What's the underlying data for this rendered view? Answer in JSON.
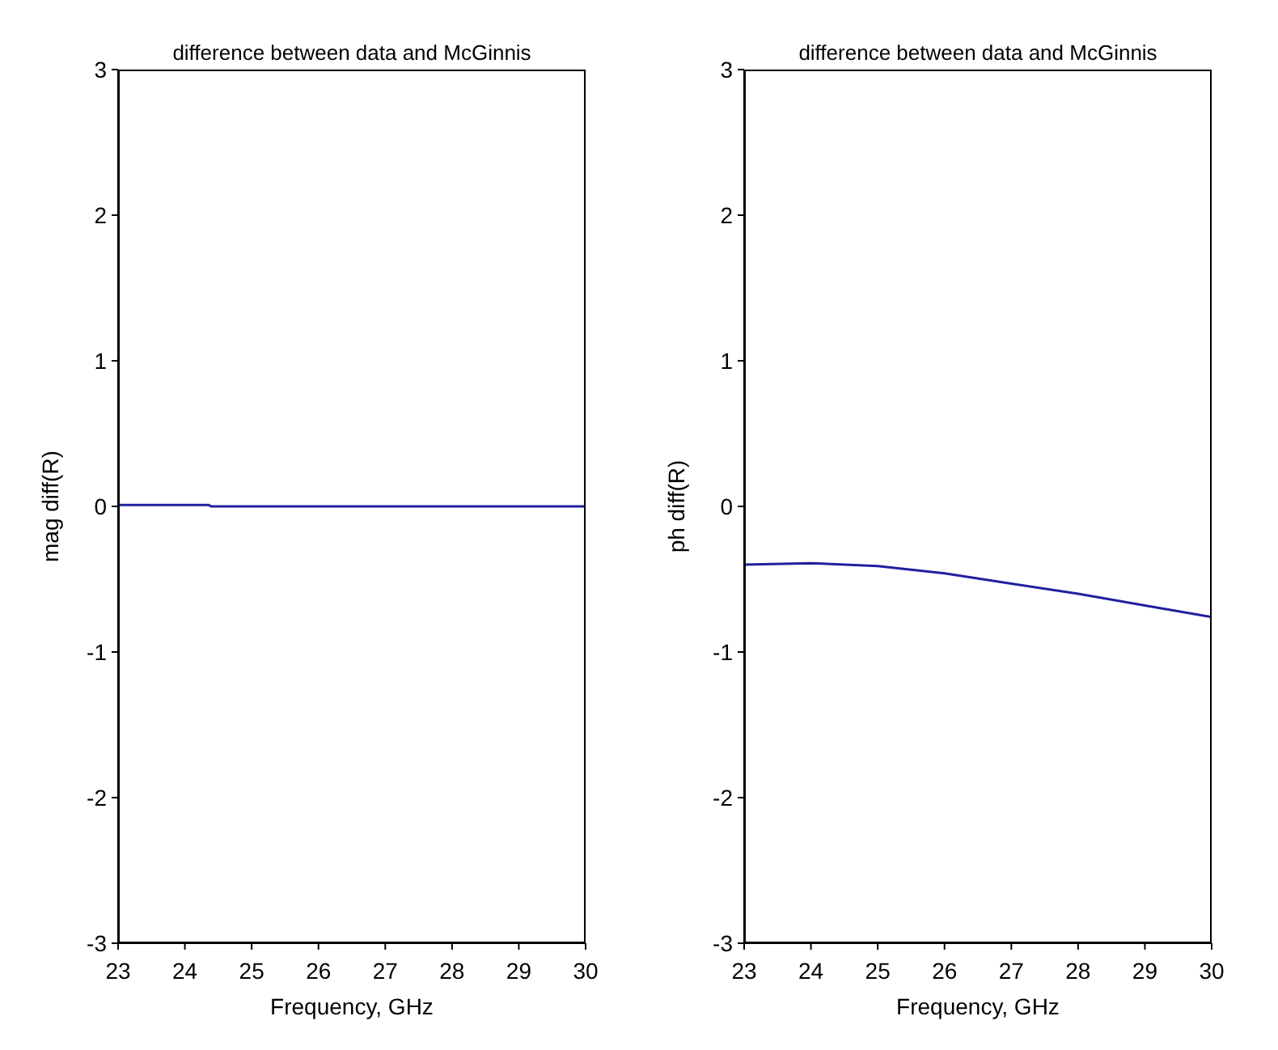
{
  "chart_data": [
    {
      "type": "line",
      "title": "difference between data and McGinnis",
      "xlabel": "Frequency, GHz",
      "ylabel": "mag diff(R)",
      "xlim": [
        23,
        30
      ],
      "xticks": [
        23,
        24,
        25,
        26,
        27,
        28,
        29,
        30
      ],
      "ylim": [
        -3,
        3
      ],
      "yticks": [
        -3,
        -2,
        -1,
        0,
        1,
        2,
        3
      ],
      "marker": "none",
      "line_style": "solid",
      "series": [
        {
          "color": "#2020a0",
          "x": [
            23,
            24.35,
            24.4,
            30
          ],
          "values": [
            0.01,
            0.01,
            0,
            0
          ]
        }
      ]
    },
    {
      "type": "line",
      "title": "difference between data and McGinnis",
      "xlabel": "Frequency, GHz",
      "ylabel": "ph diff(R)",
      "xlim": [
        23,
        30
      ],
      "xticks": [
        23,
        24,
        25,
        26,
        27,
        28,
        29,
        30
      ],
      "ylim": [
        -3,
        3
      ],
      "yticks": [
        -3,
        -2,
        -1,
        0,
        1,
        2,
        3
      ],
      "marker": "none",
      "line_style": "solid",
      "series": [
        {
          "color": "#2020a0",
          "x": [
            23,
            24,
            25,
            26,
            27,
            28,
            29,
            30
          ],
          "values": [
            -0.4,
            -0.39,
            -0.41,
            -0.46,
            -0.53,
            -0.6,
            -0.68,
            -0.76
          ]
        }
      ]
    }
  ]
}
